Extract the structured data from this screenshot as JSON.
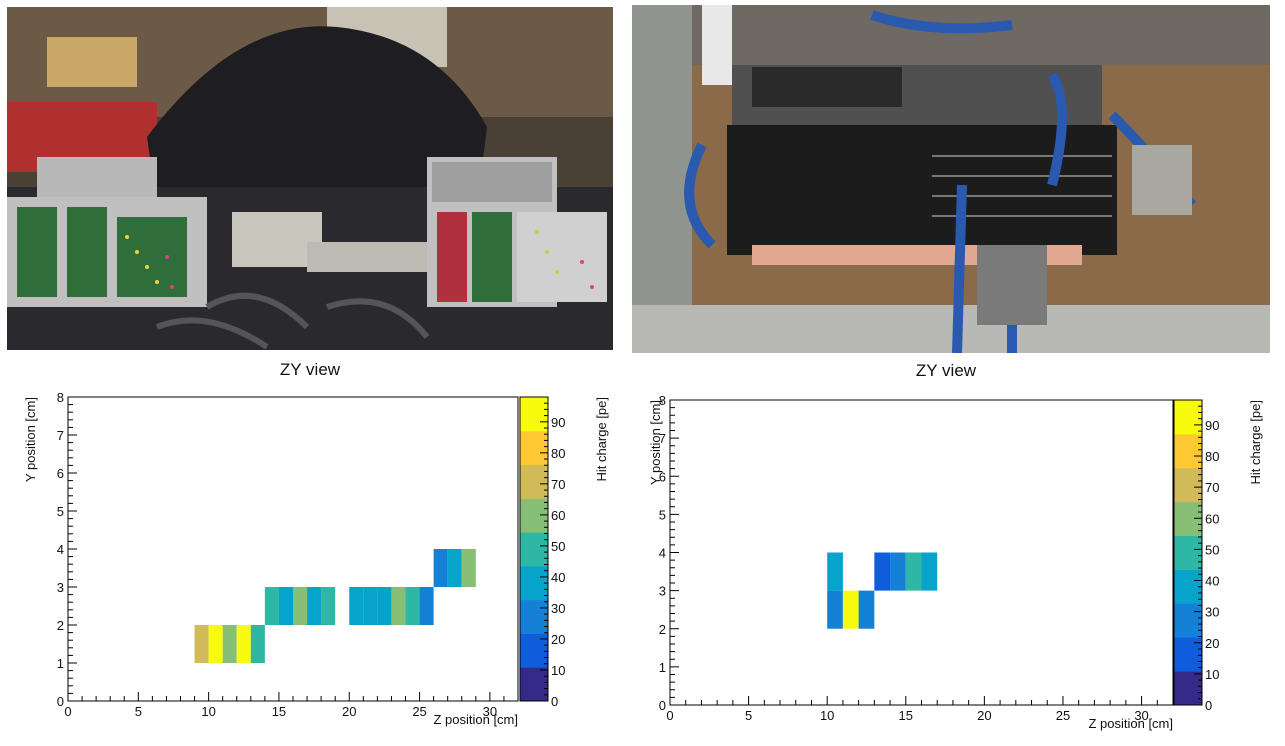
{
  "photos": [
    {
      "name": "photo-left"
    },
    {
      "name": "photo-right"
    }
  ],
  "chart_data": [
    {
      "type": "heatmap",
      "title": "ZY view",
      "xlabel": "Z position [cm]",
      "ylabel": "Y position [cm]",
      "colorbar_label": "Hit charge [pe]",
      "xlim": [
        0,
        32
      ],
      "ylim": [
        0,
        8
      ],
      "zlim": [
        0,
        98
      ],
      "x_ticks": [
        0,
        5,
        10,
        15,
        20,
        25,
        30
      ],
      "y_ticks": [
        0,
        1,
        2,
        3,
        4,
        5,
        6,
        7,
        8
      ],
      "z_ticks": [
        0,
        10,
        20,
        30,
        40,
        50,
        60,
        70,
        80,
        90
      ],
      "cells": [
        {
          "x": 9,
          "y": 1,
          "value": 72
        },
        {
          "x": 10,
          "y": 1,
          "value": 95
        },
        {
          "x": 11,
          "y": 1,
          "value": 62
        },
        {
          "x": 12,
          "y": 1,
          "value": 95
        },
        {
          "x": 13,
          "y": 1,
          "value": 48
        },
        {
          "x": 14,
          "y": 2,
          "value": 48
        },
        {
          "x": 15,
          "y": 2,
          "value": 42
        },
        {
          "x": 16,
          "y": 2,
          "value": 55
        },
        {
          "x": 17,
          "y": 2,
          "value": 35
        },
        {
          "x": 18,
          "y": 2,
          "value": 52
        },
        {
          "x": 20,
          "y": 2,
          "value": 40
        },
        {
          "x": 21,
          "y": 2,
          "value": 33
        },
        {
          "x": 22,
          "y": 2,
          "value": 38
        },
        {
          "x": 23,
          "y": 2,
          "value": 55
        },
        {
          "x": 24,
          "y": 2,
          "value": 48
        },
        {
          "x": 25,
          "y": 2,
          "value": 28
        },
        {
          "x": 26,
          "y": 3,
          "value": 22
        },
        {
          "x": 27,
          "y": 3,
          "value": 33
        },
        {
          "x": 28,
          "y": 3,
          "value": 65
        }
      ]
    },
    {
      "type": "heatmap",
      "title": "ZY view",
      "xlabel": "Z position [cm]",
      "ylabel": "Y position [cm]",
      "colorbar_label": "Hit charge [pe]",
      "xlim": [
        0,
        32
      ],
      "ylim": [
        0,
        8
      ],
      "zlim": [
        0,
        98
      ],
      "x_ticks": [
        0,
        5,
        10,
        15,
        20,
        25,
        30
      ],
      "y_ticks": [
        0,
        1,
        2,
        3,
        4,
        5,
        6,
        7,
        8
      ],
      "z_ticks": [
        0,
        10,
        20,
        30,
        40,
        50,
        60,
        70,
        80,
        90
      ],
      "cells": [
        {
          "x": 10,
          "y": 2,
          "value": 30
        },
        {
          "x": 10,
          "y": 3,
          "value": 42
        },
        {
          "x": 11,
          "y": 2,
          "value": 95
        },
        {
          "x": 12,
          "y": 2,
          "value": 25
        },
        {
          "x": 13,
          "y": 3,
          "value": 18
        },
        {
          "x": 14,
          "y": 3,
          "value": 30
        },
        {
          "x": 15,
          "y": 3,
          "value": 50
        },
        {
          "x": 16,
          "y": 3,
          "value": 42
        }
      ]
    }
  ]
}
